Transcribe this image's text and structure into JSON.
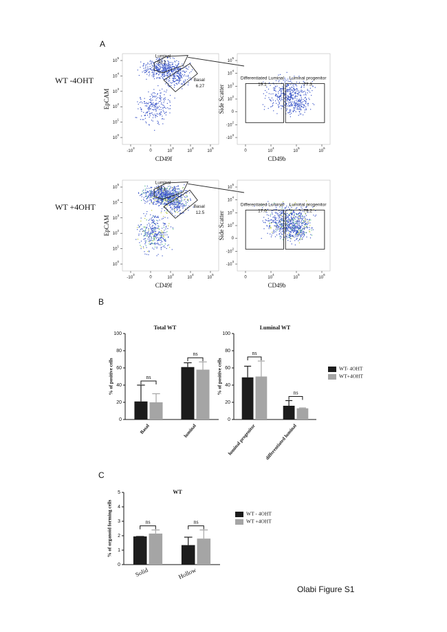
{
  "panel_labels": [
    "A",
    "B",
    "C"
  ],
  "flow": {
    "rows": [
      {
        "label": "WT -4OHT",
        "plots": [
          {
            "xlabel": "CD49f",
            "ylabel": "EpCAM",
            "xticks": [
              {
                "base": "-10",
                "exp": "3"
              },
              "0",
              {
                "base": "10",
                "exp": "3"
              },
              {
                "base": "10",
                "exp": "4"
              },
              {
                "base": "10",
                "exp": "5"
              }
            ],
            "yticks": [
              {
                "base": "10",
                "exp": "5"
              },
              {
                "base": "10",
                "exp": "4"
              },
              {
                "base": "10",
                "exp": "3"
              },
              {
                "base": "10",
                "exp": "2"
              },
              {
                "base": "10",
                "exp": "1"
              },
              {
                "base": "10",
                "exp": "0"
              }
            ],
            "gates": [
              {
                "name": "Luminal",
                "value": "50.2"
              },
              {
                "name": "Basal",
                "value": "6.27"
              }
            ]
          },
          {
            "xlabel": "CD49b",
            "ylabel": "Side Scatter",
            "xticks": [
              "0",
              {
                "base": "10",
                "exp": "4"
              },
              {
                "base": "10",
                "exp": "5"
              },
              {
                "base": "10",
                "exp": "6"
              }
            ],
            "yticks": [
              {
                "base": "10",
                "exp": "5"
              },
              {
                "base": "10",
                "exp": "4"
              },
              {
                "base": "10",
                "exp": "3"
              },
              {
                "base": "10",
                "exp": "2"
              },
              "0",
              {
                "base": "-10",
                "exp": "2"
              },
              {
                "base": "-10",
                "exp": "3"
              }
            ],
            "gates": [
              {
                "name": "Differentiated Luminal",
                "value": "19.1"
              },
              {
                "name": "Luminal progenitor",
                "value": "77.3"
              }
            ]
          }
        ]
      },
      {
        "label": "WT +4OHT",
        "plots": [
          {
            "xlabel": "CD49f",
            "ylabel": "EpCAM",
            "xticks": [
              {
                "base": "-10",
                "exp": "3"
              },
              "0",
              {
                "base": "10",
                "exp": "3"
              },
              {
                "base": "10",
                "exp": "4"
              },
              {
                "base": "10",
                "exp": "5"
              }
            ],
            "yticks": [
              {
                "base": "10",
                "exp": "5"
              },
              {
                "base": "10",
                "exp": "4"
              },
              {
                "base": "10",
                "exp": "3"
              },
              {
                "base": "10",
                "exp": "2"
              },
              {
                "base": "10",
                "exp": "1"
              },
              {
                "base": "10",
                "exp": "0"
              }
            ],
            "gates": [
              {
                "name": "Luminal",
                "value": "47.1"
              },
              {
                "name": "Basal",
                "value": "12.5"
              }
            ]
          },
          {
            "xlabel": "CD49b",
            "ylabel": "Side Scatter",
            "xticks": [
              "0",
              {
                "base": "10",
                "exp": "4"
              },
              {
                "base": "10",
                "exp": "5"
              },
              {
                "base": "10",
                "exp": "6"
              }
            ],
            "yticks": [
              {
                "base": "10",
                "exp": "5"
              },
              {
                "base": "10",
                "exp": "4"
              },
              {
                "base": "10",
                "exp": "3"
              },
              {
                "base": "10",
                "exp": "2"
              },
              "0",
              {
                "base": "-10",
                "exp": "2"
              },
              {
                "base": "-10",
                "exp": "3"
              }
            ],
            "gates": [
              {
                "name": "Differentiated Luminal",
                "value": "17.0"
              },
              {
                "name": "Luminal progenitor",
                "value": "79.2"
              }
            ]
          }
        ]
      }
    ]
  },
  "chart_data": [
    {
      "type": "bar",
      "title": "Total WT",
      "ylabel": "% of positive cells",
      "categories": [
        "Basal",
        "luminal"
      ],
      "series": [
        {
          "name": "WT- 4OHT",
          "color": "#1c1c1c",
          "values": [
            21,
            61
          ],
          "errors": [
            19,
            5
          ]
        },
        {
          "name": "WT+4OHT",
          "color": "#a5a5a5",
          "values": [
            20,
            58
          ],
          "errors": [
            10,
            9
          ]
        }
      ],
      "annotations": [
        "ns",
        "ns"
      ],
      "ylim": [
        0,
        100
      ],
      "yticks": [
        0,
        20,
        40,
        60,
        80,
        100
      ]
    },
    {
      "type": "bar",
      "title": "Luminal WT",
      "ylabel": "% of positive cells",
      "categories": [
        "luminal progenitor",
        "differentiated luminal"
      ],
      "series": [
        {
          "name": "WT- 4OHT",
          "color": "#1c1c1c",
          "values": [
            49,
            16
          ],
          "errors": [
            13,
            6
          ]
        },
        {
          "name": "WT+4OHT",
          "color": "#a5a5a5",
          "values": [
            50,
            13
          ],
          "errors": [
            18,
            0.5
          ]
        }
      ],
      "annotations": [
        "ns",
        "ns"
      ],
      "ylim": [
        0,
        100
      ],
      "yticks": [
        0,
        20,
        40,
        60,
        80,
        100
      ],
      "legend": true
    },
    {
      "type": "bar",
      "title": "WT",
      "ylabel": "% of organoid forming cells",
      "categories": [
        "Solid",
        "Hollow"
      ],
      "series": [
        {
          "name": "WT - 4OHT",
          "color": "#1c1c1c",
          "values": [
            1.95,
            1.35
          ],
          "errors": [
            0,
            0.55
          ]
        },
        {
          "name": "WT +4OHT",
          "color": "#a5a5a5",
          "values": [
            2.15,
            1.8
          ],
          "errors": [
            0.25,
            0.6
          ]
        }
      ],
      "annotations": [
        "ns",
        "ns"
      ],
      "ylim": [
        0,
        5
      ],
      "yticks": [
        0,
        1,
        2,
        3,
        4,
        5
      ],
      "legend": true
    }
  ],
  "caption": "Olabi Figure S1"
}
